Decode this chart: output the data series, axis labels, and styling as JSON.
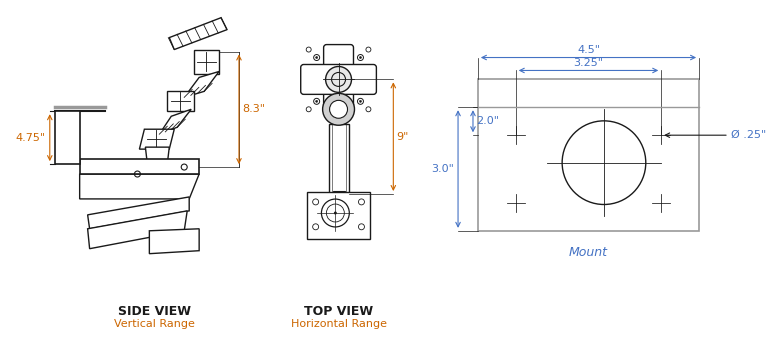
{
  "bg_color": "#ffffff",
  "line_color": "#1a1a1a",
  "orange_color": "#cc6600",
  "blue_color": "#4472c4",
  "gray_color": "#999999",
  "side_view_label": "SIDE VIEW",
  "side_view_sub": "Vertical Range",
  "top_view_label": "TOP VIEW",
  "top_view_sub": "Horizontal Range",
  "mount_label": "Mount",
  "dim_83": "8.3\"",
  "dim_9": "9\"",
  "dim_475": "4.75\"",
  "dim_45": "4.5\"",
  "dim_325": "3.25\"",
  "dim_30": "3.0\"",
  "dim_20": "2.0\"",
  "dim_025": "Ø .25\""
}
